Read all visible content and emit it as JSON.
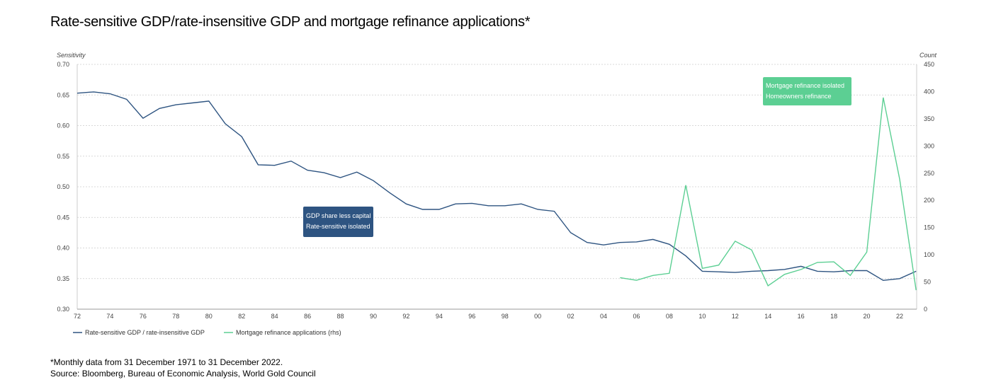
{
  "title": "Rate-sensitive GDP/rate-insensitive GDP and mortgage refinance applications*",
  "footnote": "*Monthly data from 31 December 1971 to 31 December 2022.",
  "source": "Source: Bloomberg, Bureau of Economic Analysis, World Gold Council",
  "chart_data": {
    "type": "line",
    "title": "Rate-sensitive GDP/rate-insensitive GDP and mortgage refinance applications*",
    "ylabel": "Sensitivity",
    "y2label": "Count",
    "ylim": [
      0.3,
      0.7
    ],
    "y2lim": [
      0,
      450
    ],
    "yticks": [
      "0.30",
      "0.35",
      "0.40",
      "0.45",
      "0.50",
      "0.55",
      "0.60",
      "0.65",
      "0.70"
    ],
    "y2ticks": [
      "0",
      "50",
      "100",
      "150",
      "200",
      "250",
      "300",
      "350",
      "400",
      "450"
    ],
    "xlim": [
      1972,
      2023
    ],
    "xticks": [
      "72",
      "74",
      "76",
      "78",
      "80",
      "82",
      "84",
      "86",
      "88",
      "90",
      "92",
      "94",
      "96",
      "98",
      "00",
      "02",
      "04",
      "06",
      "08",
      "10",
      "12",
      "14",
      "16",
      "18",
      "20",
      "22"
    ],
    "grid": true,
    "legend_position": "bottom-left",
    "colors": {
      "gdp": "#2e5481",
      "refi": "#5ccf93"
    },
    "annotations": [
      {
        "text": "GDP share less capital",
        "overlap": "Rate-sensitive isolated",
        "color": "#2e5481"
      },
      {
        "text": "Mortgage refinance isolated",
        "overlap": "Homeowners refinance",
        "color": "#5ccf93"
      }
    ],
    "series": [
      {
        "name": "Rate-sensitive GDP / rate-insensitive GDP",
        "axis": "left",
        "x": [
          1972,
          1973,
          1974,
          1975,
          1976,
          1977,
          1978,
          1979,
          1980,
          1981,
          1982,
          1983,
          1984,
          1985,
          1986,
          1987,
          1988,
          1989,
          1990,
          1991,
          1992,
          1993,
          1994,
          1995,
          1996,
          1997,
          1998,
          1999,
          2000,
          2001,
          2002,
          2003,
          2004,
          2005,
          2006,
          2007,
          2008,
          2009,
          2010,
          2011,
          2012,
          2013,
          2014,
          2015,
          2016,
          2017,
          2018,
          2019,
          2020,
          2021,
          2022,
          2023
        ],
        "values": [
          0.653,
          0.655,
          0.652,
          0.643,
          0.612,
          0.628,
          0.634,
          0.637,
          0.64,
          0.603,
          0.582,
          0.536,
          0.535,
          0.542,
          0.527,
          0.523,
          0.515,
          0.524,
          0.51,
          0.49,
          0.472,
          0.463,
          0.463,
          0.472,
          0.473,
          0.469,
          0.469,
          0.472,
          0.463,
          0.46,
          0.425,
          0.409,
          0.405,
          0.409,
          0.41,
          0.414,
          0.406,
          0.387,
          0.362,
          0.361,
          0.36,
          0.362,
          0.363,
          0.365,
          0.37,
          0.362,
          0.361,
          0.363,
          0.363,
          0.347,
          0.35,
          0.362
        ]
      },
      {
        "name": "Mortgage refinance applications (rhs)",
        "axis": "right",
        "x": [
          2005,
          2006,
          2007,
          2008,
          2009,
          2010,
          2011,
          2012,
          2013,
          2014,
          2015,
          2016,
          2017,
          2018,
          2019,
          2020,
          2021,
          2022,
          2023
        ],
        "values": [
          58,
          53,
          62,
          66,
          228,
          75,
          81,
          125,
          109,
          43,
          64,
          73,
          86,
          87,
          62,
          105,
          389,
          239,
          35
        ]
      }
    ]
  }
}
